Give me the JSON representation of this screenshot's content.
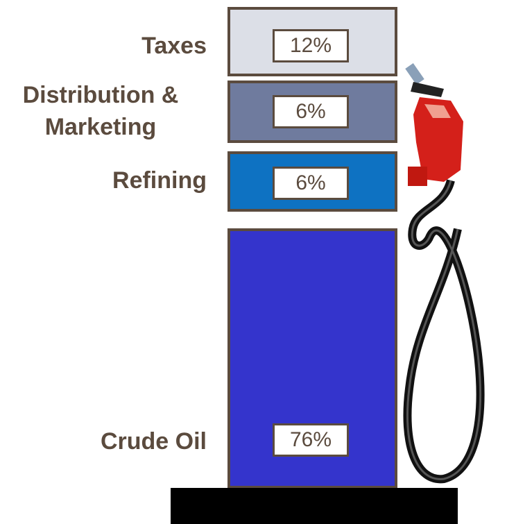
{
  "chart_data": {
    "type": "pump",
    "categories": [
      "Crude Oil",
      "Refining",
      "Distribution & Marketing",
      "Taxes"
    ],
    "series": [
      {
        "values": [
          76,
          6,
          6,
          12
        ],
        "value_labels": [
          "76%",
          "6%",
          "6%",
          "12%"
        ],
        "colors": [
          "#3434cc",
          "#0e72c2",
          "#6f7b9e",
          "#dcdfe7"
        ]
      }
    ]
  }
}
